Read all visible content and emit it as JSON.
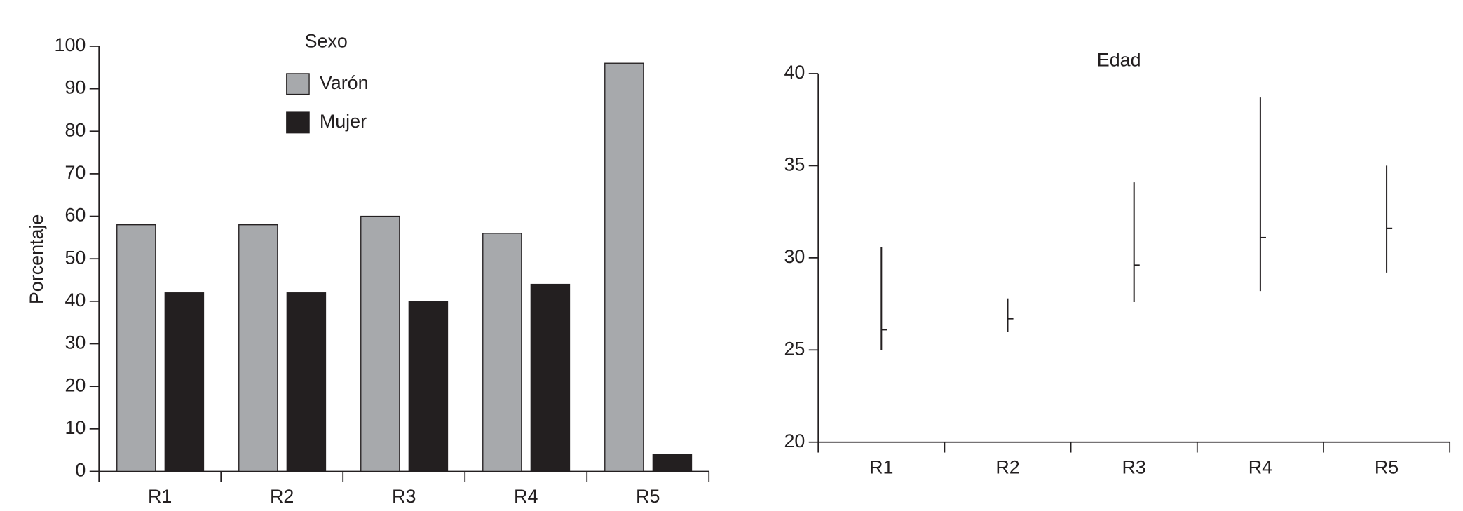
{
  "chart_data": [
    {
      "type": "bar",
      "legend_title": "Sexo",
      "y_label": "Porcentaje",
      "categories": [
        "R1",
        "R2",
        "R3",
        "R4",
        "R5"
      ],
      "series": [
        {
          "name": "Varón",
          "color": "#a7a9ac",
          "values": [
            58,
            58,
            60,
            56,
            96
          ]
        },
        {
          "name": "Mujer",
          "color": "#231f20",
          "values": [
            42,
            42,
            40,
            44,
            4
          ]
        }
      ],
      "ylim": [
        0,
        100
      ],
      "yticks": [
        0,
        10,
        20,
        30,
        40,
        50,
        60,
        70,
        80,
        90,
        100
      ]
    },
    {
      "type": "range",
      "title": "Edad",
      "categories": [
        "R1",
        "R2",
        "R3",
        "R4",
        "R5"
      ],
      "high": [
        30.6,
        27.8,
        34.1,
        38.7,
        35.0
      ],
      "low": [
        25.0,
        26.0,
        27.6,
        28.2,
        29.2
      ],
      "mean": [
        26.1,
        26.7,
        29.6,
        31.1,
        31.6
      ],
      "color": "#231f20",
      "ylim": [
        20,
        40
      ],
      "yticks": [
        20,
        25,
        30,
        35,
        40
      ]
    }
  ]
}
